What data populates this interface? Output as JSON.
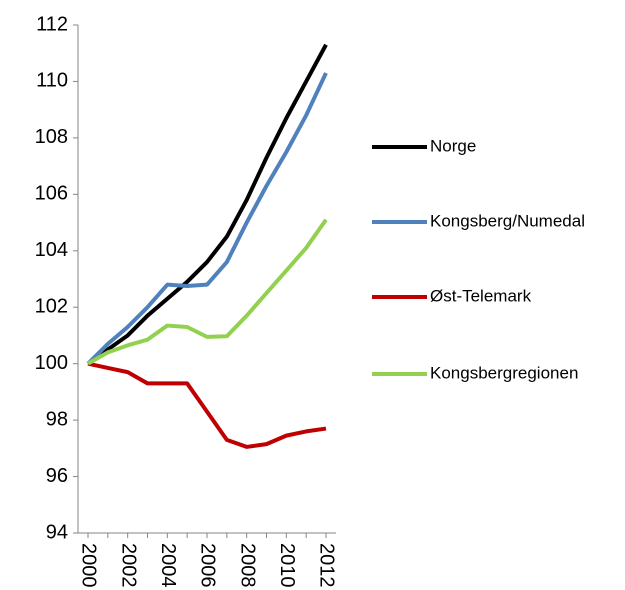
{
  "chart_data": {
    "type": "line",
    "categories": [
      "2000",
      null,
      "2002",
      null,
      "2004",
      null,
      "2006",
      null,
      "2008",
      null,
      "2010",
      null,
      "2012"
    ],
    "series": [
      {
        "name": "Norge",
        "color": "#000000",
        "values": [
          100,
          100.5,
          101.0,
          101.7,
          102.3,
          102.9,
          103.6,
          104.5,
          105.8,
          107.3,
          108.7,
          110.0,
          111.3
        ]
      },
      {
        "name": "Kongsberg/Numedal",
        "color": "#4f81bd",
        "values": [
          100,
          100.7,
          101.3,
          102.0,
          102.8,
          102.75,
          102.8,
          103.6,
          105.0,
          106.3,
          107.5,
          108.8,
          110.3
        ]
      },
      {
        "name": "Øst-Telemark",
        "color": "#c00000",
        "values": [
          100,
          99.85,
          99.7,
          99.3,
          99.3,
          99.3,
          98.3,
          97.3,
          97.05,
          97.15,
          97.45,
          97.6,
          97.7
        ]
      },
      {
        "name": "Kongsbergregionen",
        "color": "#92d050",
        "values": [
          100,
          100.4,
          100.65,
          100.85,
          101.35,
          101.3,
          100.95,
          100.97,
          101.7,
          102.5,
          103.3,
          104.1,
          105.1
        ]
      }
    ],
    "ylim": [
      94,
      112
    ],
    "yticks": [
      94,
      96,
      98,
      100,
      102,
      104,
      106,
      108,
      110,
      112
    ],
    "legend": "right"
  }
}
